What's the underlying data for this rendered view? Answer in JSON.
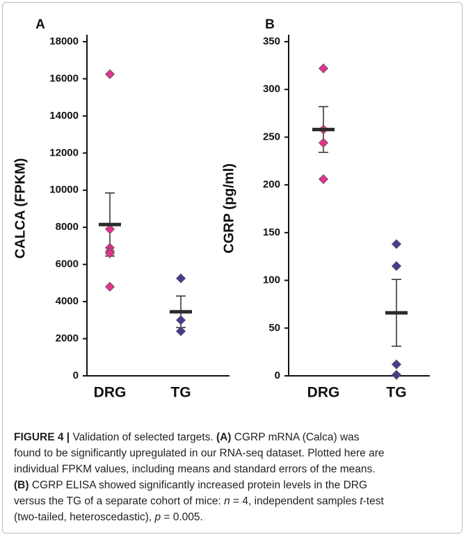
{
  "chart_data": [
    {
      "type": "dot",
      "panel": "A",
      "ylabel": "CALCA (FPKM)",
      "categories": [
        "DRG",
        "TG"
      ],
      "values": [
        [
          16250,
          7900,
          6900,
          6700,
          6600,
          4800
        ],
        [
          5250,
          3000,
          2400
        ]
      ],
      "means": [
        8150,
        3450
      ],
      "errors": [
        1700,
        850
      ],
      "colors": [
        "#e4338c",
        "#4a3a8e"
      ],
      "mean_color": "#2b2b2b",
      "ylim": [
        0,
        18000
      ],
      "yticks": [
        0,
        2000,
        4000,
        6000,
        8000,
        10000,
        12000,
        14000,
        16000,
        18000
      ]
    },
    {
      "type": "dot",
      "panel": "B",
      "ylabel": "CGRP (pg/ml)",
      "categories": [
        "DRG",
        "TG"
      ],
      "values": [
        [
          322,
          258,
          244,
          206
        ],
        [
          138,
          115,
          12,
          1
        ]
      ],
      "means": [
        258,
        66
      ],
      "errors": [
        24,
        35
      ],
      "colors": [
        "#e4338c",
        "#4a3a8e"
      ],
      "mean_color": "#2b2b2b",
      "ylim": [
        0,
        350
      ],
      "yticks": [
        0,
        50,
        100,
        150,
        200,
        250,
        300,
        350
      ]
    }
  ],
  "caption": [
    [
      {
        "text": "FIGURE 4 |",
        "bold": true
      },
      {
        "text": " Validation of selected targets. "
      },
      {
        "text": "(A)",
        "bold": true
      },
      {
        "text": " CGRP mRNA (Calca) was"
      }
    ],
    [
      {
        "text": "found to be significantly upregulated in our RNA-seq dataset. Plotted here are"
      }
    ],
    [
      {
        "text": "individual FPKM values, including means and standard errors of the means."
      }
    ],
    [
      {
        "text": "(B)",
        "bold": true
      },
      {
        "text": " CGRP ELISA showed significantly increased protein levels in the DRG"
      }
    ],
    [
      {
        "text": "versus the TG of a separate cohort of mice: "
      },
      {
        "text": "n",
        "italic": true
      },
      {
        "text": " = 4, independent samples "
      },
      {
        "text": "t",
        "italic": true
      },
      {
        "text": "-test"
      }
    ],
    [
      {
        "text": "(two-tailed, heteroscedastic), "
      },
      {
        "text": "p",
        "italic": true
      },
      {
        "text": " = 0.005."
      }
    ]
  ]
}
